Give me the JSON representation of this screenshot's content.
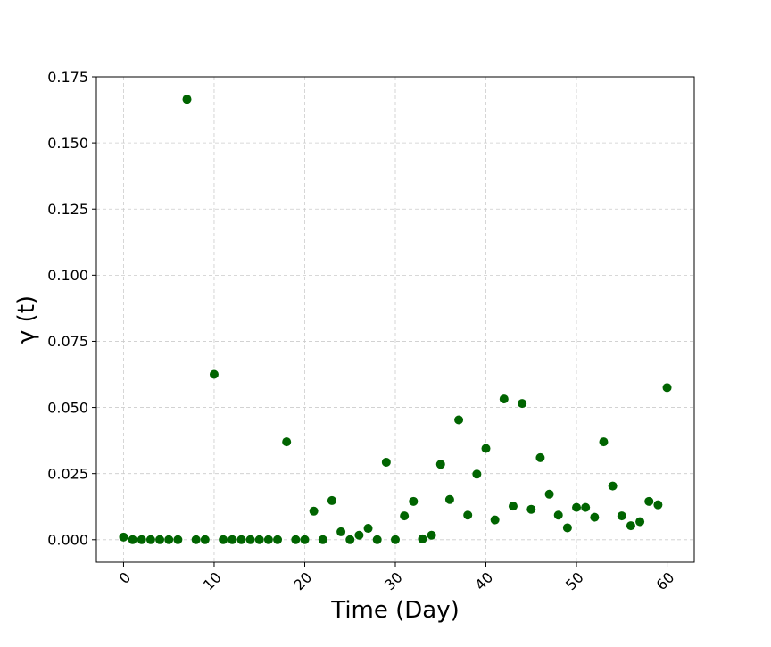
{
  "chart_data": {
    "type": "scatter",
    "title": "",
    "xlabel": "Time (Day)",
    "ylabel": "γ (t)",
    "xlim": [
      -3,
      63
    ],
    "ylim": [
      -0.0085,
      0.175
    ],
    "xticks": [
      0,
      10,
      20,
      30,
      40,
      50,
      60
    ],
    "xtick_labels": [
      "0",
      "10",
      "20",
      "30",
      "40",
      "50",
      "60"
    ],
    "yticks": [
      0.0,
      0.025,
      0.05,
      0.075,
      0.1,
      0.125,
      0.15,
      0.175
    ],
    "ytick_labels": [
      "0.000",
      "0.025",
      "0.050",
      "0.075",
      "0.100",
      "0.125",
      "0.150",
      "0.175"
    ],
    "xtick_rotation": 45,
    "grid": true,
    "marker_color": "#006400",
    "grid_color": "#cccccc",
    "series": [
      {
        "x": [
          0,
          1,
          2,
          3,
          4,
          5,
          6,
          7,
          8,
          9,
          10,
          11,
          12,
          13,
          14,
          15,
          16,
          17,
          18,
          19,
          20,
          21,
          22,
          23,
          24,
          25,
          26,
          27,
          28,
          29,
          30,
          31,
          32,
          33,
          34,
          35,
          36,
          37,
          38,
          39,
          40,
          41,
          42,
          43,
          44,
          45,
          46,
          47,
          48,
          49,
          50,
          51,
          52,
          53,
          54,
          55,
          56,
          57,
          58,
          59,
          60
        ],
        "y": [
          0.001,
          0.0,
          0.0,
          0.0,
          0.0,
          0.0,
          0.0,
          0.1665,
          0.0,
          0.0,
          0.0625,
          0.0,
          0.0,
          0.0,
          0.0,
          0.0,
          0.0,
          0.0,
          0.037,
          0.0,
          0.0,
          0.0108,
          0.0,
          0.0148,
          0.003,
          0.0,
          0.0017,
          0.0043,
          0.0,
          0.0293,
          0.0,
          0.009,
          0.0145,
          0.0003,
          0.0017,
          0.0285,
          0.0152,
          0.0453,
          0.0093,
          0.0248,
          0.0345,
          0.0075,
          0.0532,
          0.0127,
          0.0515,
          0.0115,
          0.031,
          0.0172,
          0.0093,
          0.0045,
          0.0122,
          0.0122,
          0.0085,
          0.037,
          0.0203,
          0.009,
          0.0053,
          0.0068,
          0.0145,
          0.0132,
          0.0575
        ]
      }
    ]
  }
}
